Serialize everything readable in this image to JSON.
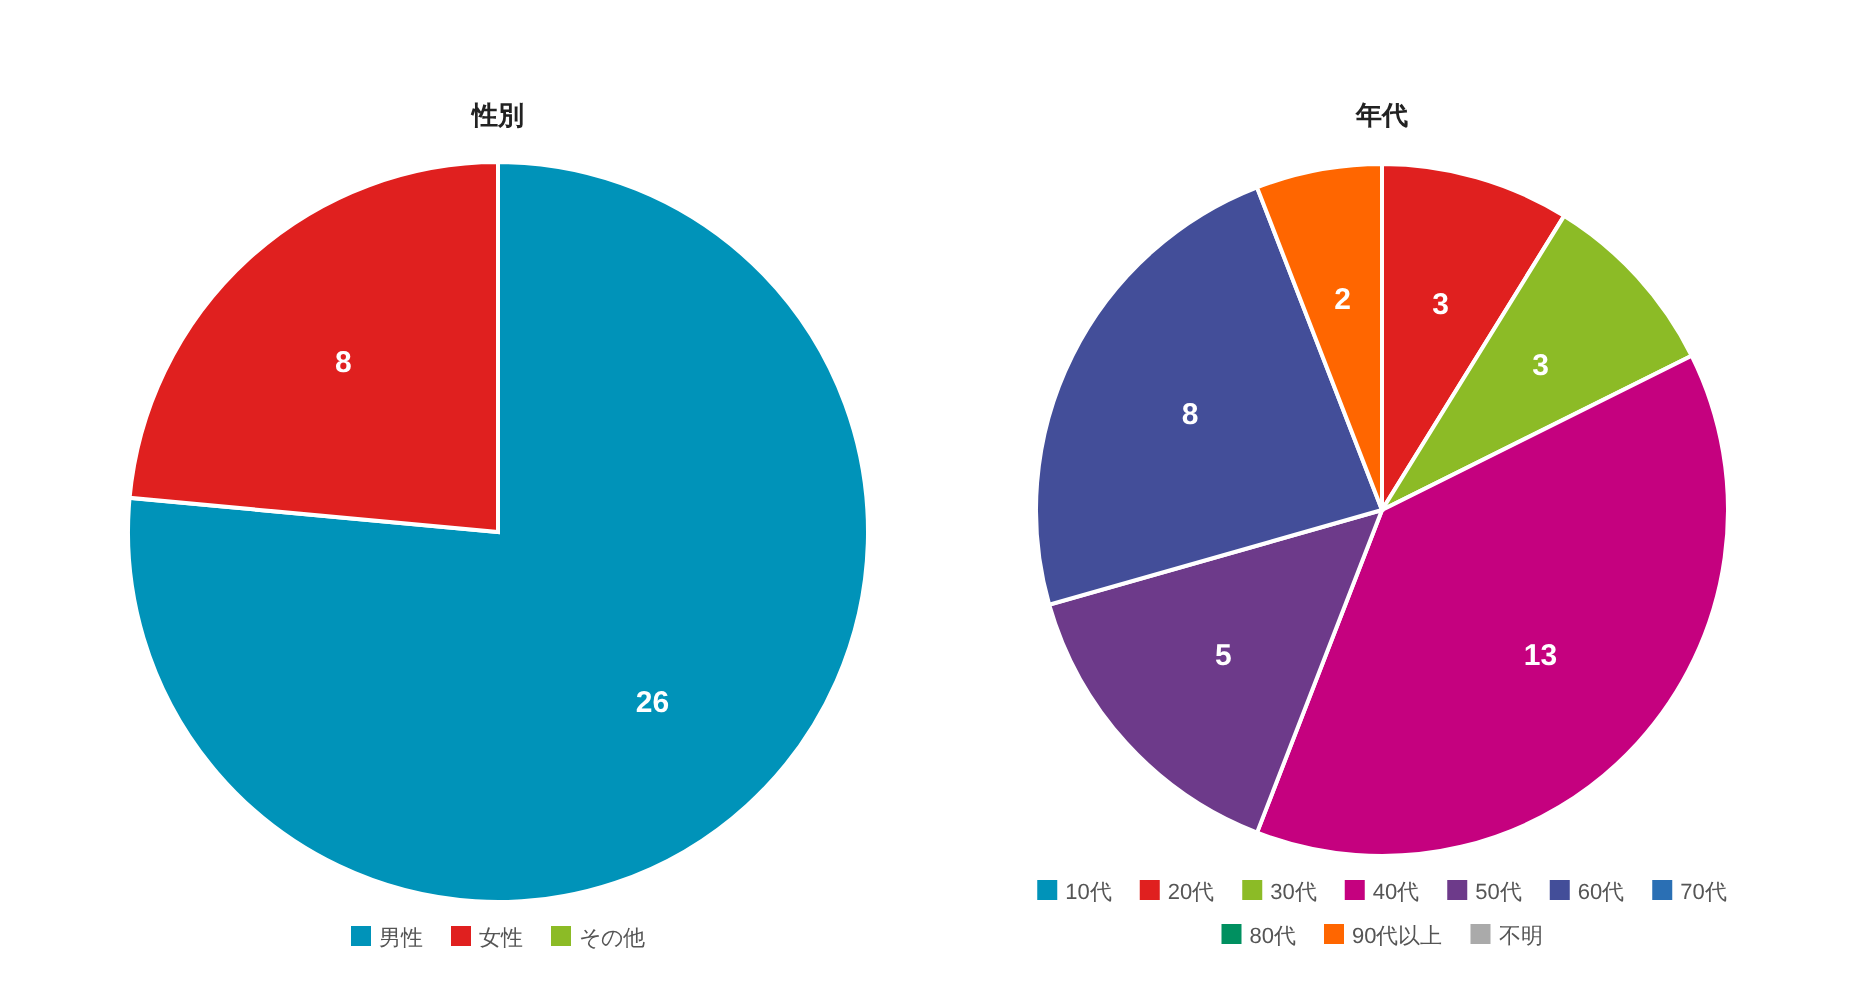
{
  "chart_data": [
    {
      "type": "pie",
      "title": "性別",
      "categories": [
        "男性",
        "女性",
        "その他"
      ],
      "values": [
        26,
        8,
        0
      ],
      "colors": [
        "#0093b9",
        "#e0201f",
        "#8cbb26"
      ],
      "data_labels": true,
      "legend": "bottom"
    },
    {
      "type": "pie",
      "title": "年代",
      "categories": [
        "10代",
        "20代",
        "30代",
        "40代",
        "50代",
        "60代",
        "70代",
        "80代",
        "90代以上",
        "不明"
      ],
      "values": [
        0,
        3,
        3,
        13,
        5,
        8,
        0,
        0,
        2,
        0
      ],
      "colors": [
        "#0093b9",
        "#e0201f",
        "#8cbb26",
        "#c5017f",
        "#6d3a8a",
        "#434e99",
        "#2a6fb4",
        "#009060",
        "#ff6600",
        "#aaaaaa"
      ],
      "data_labels": true,
      "legend": "bottom"
    }
  ]
}
